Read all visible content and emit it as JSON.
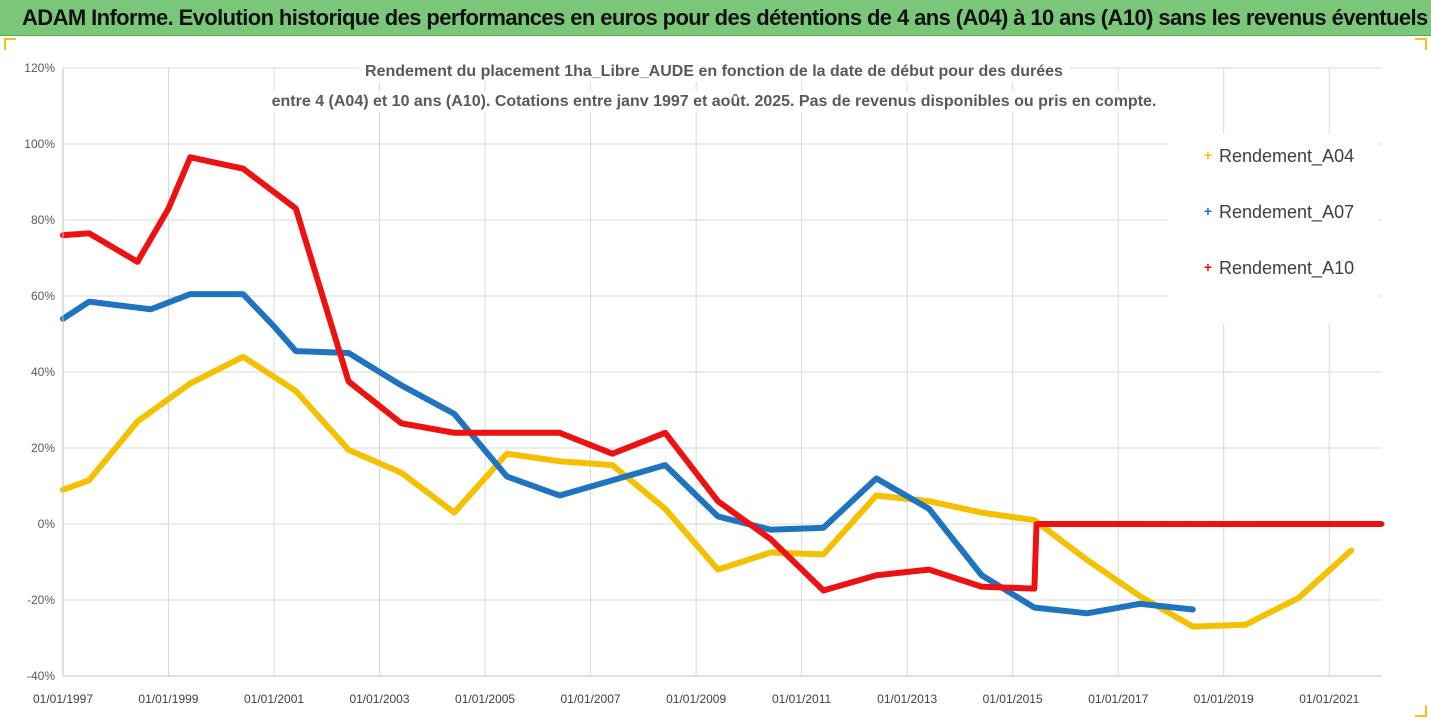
{
  "banner": {
    "title": "ADAM Informe. Evolution historique des performances en euros pour des détentions de 4 ans (A04) à 10 ans (A10) sans les revenus éventuels"
  },
  "colors": {
    "banner_bg": "#7ac77a",
    "A04": "#f5c000",
    "A07": "#1f74c0",
    "A10": "#ee1111",
    "grid": "#d9d9d9"
  },
  "chart_data": {
    "type": "line",
    "title_lines": [
      "Rendement du placement 1ha_Libre_AUDE en fonction de la date de début pour des durées",
      "entre 4 (A04) et 10 ans (A10). Cotations entre janv 1997 et août. 2025. Pas de revenus disponibles ou pris en compte."
    ],
    "xlabel": "",
    "ylabel": "",
    "xlim": [
      "1997-01-01",
      "2022-01-01"
    ],
    "ylim": [
      -40,
      120
    ],
    "y_unit": "%",
    "y_ticks": [
      -40,
      -20,
      0,
      20,
      40,
      60,
      80,
      100,
      120
    ],
    "y_tick_labels": [
      "-40%",
      "-20%",
      "0%",
      "20%",
      "40%",
      "60%",
      "80%",
      "100%",
      "120%"
    ],
    "x_ticks": [
      "1997-01-01",
      "1999-01-01",
      "2001-01-01",
      "2003-01-01",
      "2005-01-01",
      "2007-01-01",
      "2009-01-01",
      "2011-01-01",
      "2013-01-01",
      "2015-01-01",
      "2017-01-01",
      "2019-01-01",
      "2021-01-01"
    ],
    "x_tick_labels": [
      "01/01/1997",
      "01/01/1999",
      "01/01/2001",
      "01/01/2003",
      "01/01/2005",
      "01/01/2007",
      "01/01/2009",
      "01/01/2011",
      "01/01/2013",
      "01/01/2015",
      "01/01/2017",
      "01/01/2019",
      "01/01/2021"
    ],
    "grid": true,
    "legend_position": "right",
    "series": [
      {
        "name": "Rendement_A04",
        "color": "#f5c000",
        "points": [
          [
            "1997-01-01",
            9
          ],
          [
            "1997-07-01",
            11.5
          ],
          [
            "1998-06-01",
            27
          ],
          [
            "1999-06-01",
            37
          ],
          [
            "2000-06-01",
            44
          ],
          [
            "2001-06-01",
            35
          ],
          [
            "2002-06-01",
            19.5
          ],
          [
            "2003-06-01",
            13.5
          ],
          [
            "2004-06-01",
            3
          ],
          [
            "2005-06-01",
            18.5
          ],
          [
            "2006-06-01",
            16.5
          ],
          [
            "2007-06-01",
            15.5
          ],
          [
            "2008-06-01",
            4
          ],
          [
            "2009-06-01",
            -12
          ],
          [
            "2010-06-01",
            -7.5
          ],
          [
            "2011-06-01",
            -8
          ],
          [
            "2012-06-01",
            7.5
          ],
          [
            "2013-06-01",
            6
          ],
          [
            "2014-06-01",
            3
          ],
          [
            "2015-06-01",
            1
          ],
          [
            "2016-06-01",
            -9.5
          ],
          [
            "2017-06-01",
            -19
          ],
          [
            "2018-06-01",
            -27
          ],
          [
            "2019-06-01",
            -26.5
          ],
          [
            "2020-06-01",
            -19.5
          ],
          [
            "2021-06-01",
            -7
          ]
        ]
      },
      {
        "name": "Rendement_A07",
        "color": "#1f74c0",
        "points": [
          [
            "1997-01-01",
            54
          ],
          [
            "1997-07-01",
            58.5
          ],
          [
            "1998-09-01",
            56.5
          ],
          [
            "1999-06-01",
            60.5
          ],
          [
            "2000-06-01",
            60.5
          ],
          [
            "2001-01-01",
            52
          ],
          [
            "2001-06-01",
            45.5
          ],
          [
            "2002-06-01",
            45
          ],
          [
            "2003-06-01",
            36.5
          ],
          [
            "2004-06-01",
            29
          ],
          [
            "2005-06-01",
            12.5
          ],
          [
            "2006-06-01",
            7.5
          ],
          [
            "2007-06-01",
            11.5
          ],
          [
            "2008-06-01",
            15.5
          ],
          [
            "2009-06-01",
            2
          ],
          [
            "2010-06-01",
            -1.5
          ],
          [
            "2011-06-01",
            -1
          ],
          [
            "2012-06-01",
            12
          ],
          [
            "2013-06-01",
            4
          ],
          [
            "2014-06-01",
            -13.5
          ],
          [
            "2015-06-01",
            -22
          ],
          [
            "2016-06-01",
            -23.5
          ],
          [
            "2017-06-01",
            -21
          ],
          [
            "2018-06-01",
            -22.5
          ]
        ]
      },
      {
        "name": "Rendement_A10",
        "color": "#ee1111",
        "points": [
          [
            "1997-01-01",
            76
          ],
          [
            "1997-07-01",
            76.5
          ],
          [
            "1998-06-01",
            69
          ],
          [
            "1999-01-01",
            83
          ],
          [
            "1999-06-01",
            96.5
          ],
          [
            "2000-06-01",
            93.5
          ],
          [
            "2001-06-01",
            83
          ],
          [
            "2002-06-01",
            37.5
          ],
          [
            "2003-06-01",
            26.5
          ],
          [
            "2004-06-01",
            24
          ],
          [
            "2005-06-01",
            24
          ],
          [
            "2006-06-01",
            24
          ],
          [
            "2007-06-01",
            18.5
          ],
          [
            "2008-06-01",
            24
          ],
          [
            "2009-06-01",
            6
          ],
          [
            "2010-06-01",
            -4
          ],
          [
            "2011-06-01",
            -17.5
          ],
          [
            "2012-06-01",
            -13.5
          ],
          [
            "2013-06-01",
            -12
          ],
          [
            "2014-06-01",
            -16.5
          ],
          [
            "2015-06-01",
            -17
          ],
          [
            "2015-06-15",
            0
          ],
          [
            "2022-01-01",
            0
          ]
        ]
      }
    ]
  }
}
